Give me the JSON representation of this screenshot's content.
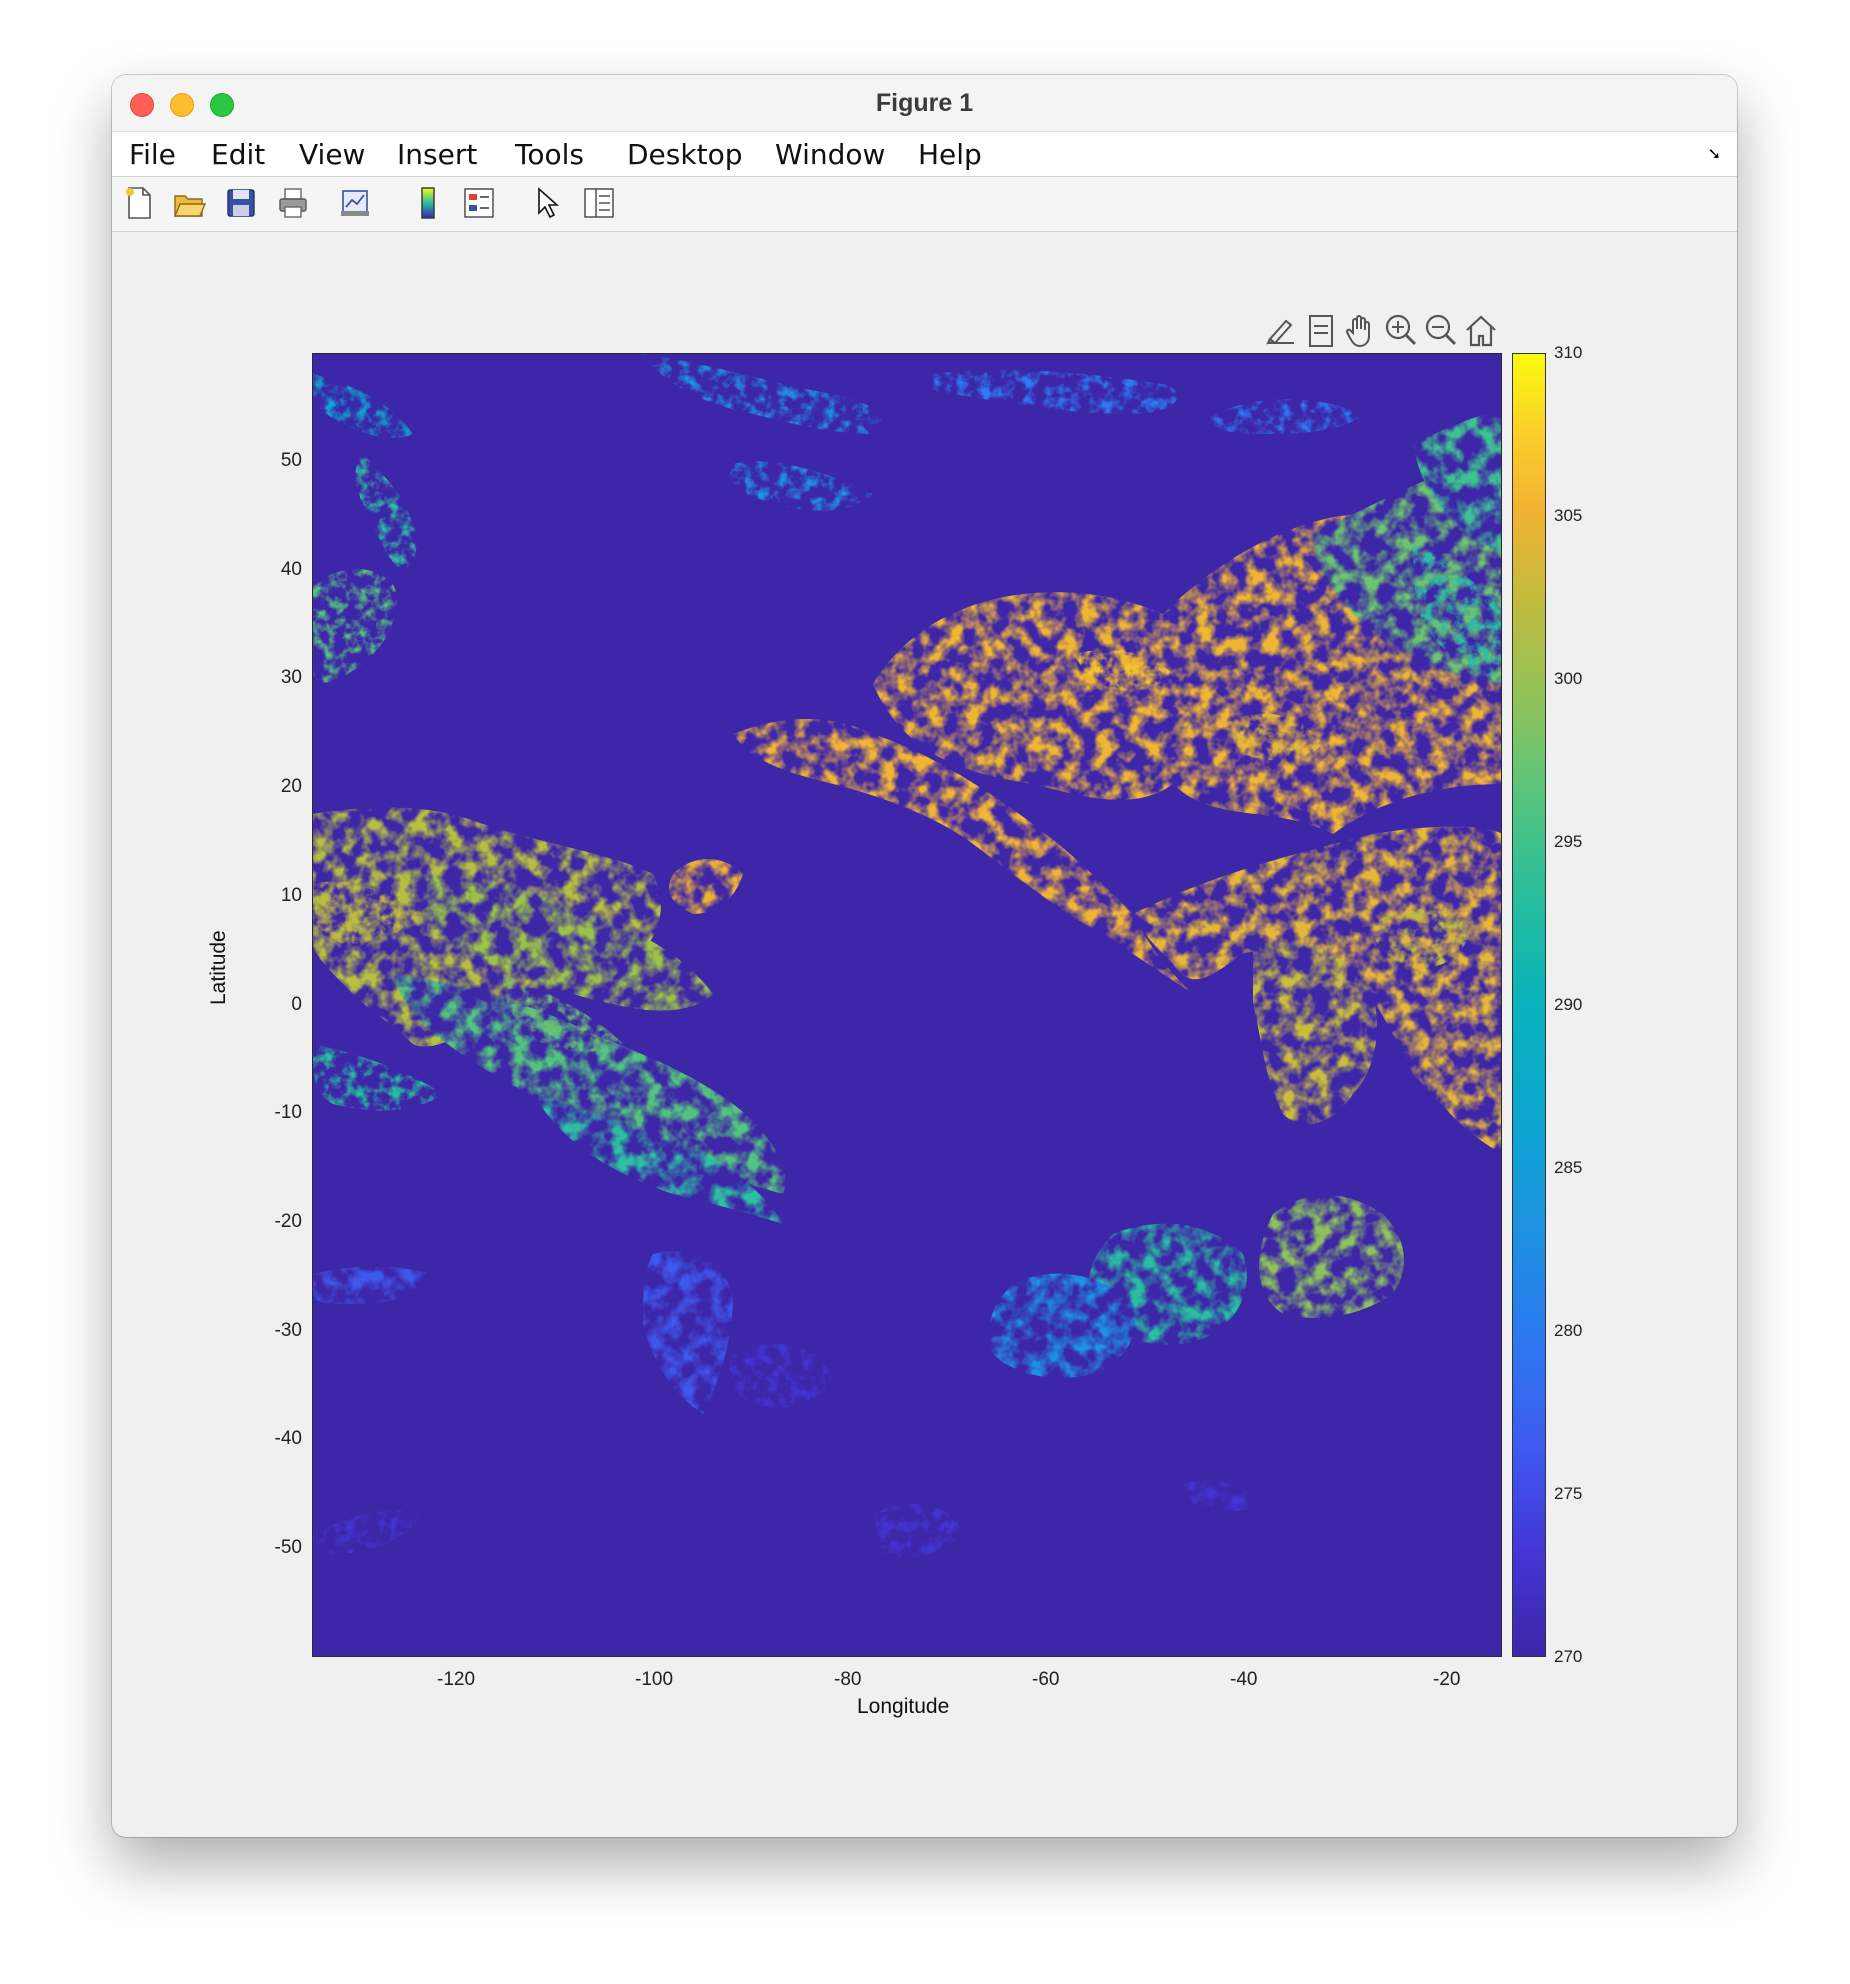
{
  "window": {
    "title": "Figure 1"
  },
  "menu": [
    "File",
    "Edit",
    "View",
    "Insert",
    "Tools",
    "Desktop",
    "Window",
    "Help"
  ],
  "toolbar_icons": [
    "new-figure-icon",
    "open-file-icon",
    "save-icon",
    "print-icon",
    "link-plot-icon",
    "insert-colorbar-icon",
    "insert-legend-icon",
    "edit-plot-icon",
    "open-property-inspector-icon"
  ],
  "axes_toolbar_icons": [
    "brush-icon",
    "data-tips-icon",
    "pan-icon",
    "zoom-in-icon",
    "zoom-out-icon",
    "home-icon"
  ],
  "chart_data": {
    "type": "heatmap",
    "xlabel": "Longitude",
    "ylabel": "Latitude",
    "xlim": [
      -135,
      -15
    ],
    "ylim": [
      -60,
      60
    ],
    "xticks": [
      -120,
      -100,
      -80,
      -60,
      -40,
      -20
    ],
    "yticks": [
      50,
      40,
      30,
      20,
      10,
      0,
      -10,
      -20,
      -30,
      -40,
      -50
    ],
    "colorbar": {
      "clim": [
        270,
        310
      ],
      "ticks": [
        310,
        305,
        300,
        295,
        290,
        285,
        280,
        275,
        270
      ],
      "colormap": "parula"
    },
    "background_color": "#3e26a8"
  }
}
